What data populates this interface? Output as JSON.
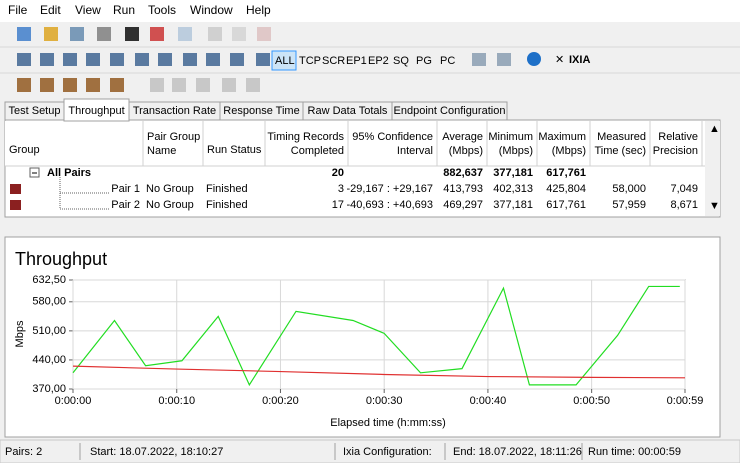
{
  "menu": [
    "File",
    "Edit",
    "View",
    "Run",
    "Tools",
    "Window",
    "Help"
  ],
  "toolbar_buttons": [
    "ALL",
    "TCP",
    "SCR",
    "EP1",
    "EP2",
    "SQ",
    "PG",
    "PC"
  ],
  "logo": "IXIA",
  "tabs": [
    "Test Setup",
    "Throughput",
    "Transaction Rate",
    "Response Time",
    "Raw Data Totals",
    "Endpoint Configuration"
  ],
  "active_tab": 1,
  "table": {
    "columns": [
      [
        "Group"
      ],
      [
        "Pair Group",
        "Name"
      ],
      [
        "Run Status"
      ],
      [
        "Timing Records",
        "Completed"
      ],
      [
        "95% Confidence",
        "Interval"
      ],
      [
        "Average",
        "(Mbps)"
      ],
      [
        "Minimum",
        "(Mbps)"
      ],
      [
        "Maximum",
        "(Mbps)"
      ],
      [
        "Measured",
        "Time (sec)"
      ],
      [
        "Relative",
        "Precision"
      ]
    ],
    "rows": [
      {
        "group": "All Pairs",
        "records": 20,
        "average": "882,637",
        "minimum": "377,181",
        "maximum": "617,761"
      },
      {
        "group": "Pair 1",
        "pair_group_name": "No Group",
        "run_status": "Finished",
        "records": 3,
        "interval": "-29,167 : +29,167",
        "average": "413,793",
        "minimum": "402,313",
        "maximum": "425,804",
        "measured_time": "58,000",
        "precision": "7,049"
      },
      {
        "group": "Pair 2",
        "pair_group_name": "No Group",
        "run_status": "Finished",
        "records": 17,
        "interval": "-40,693 : +40,693",
        "average": "469,297",
        "minimum": "377,181",
        "maximum": "617,761",
        "measured_time": "57,959",
        "precision": "8,671"
      }
    ]
  },
  "chart_data": {
    "type": "line",
    "title": "Throughput",
    "x_label": "Elapsed time (h:mm:ss)",
    "y_label": "Mbps",
    "xlim": [
      0,
      59
    ],
    "xticks": [
      {
        "value": 0,
        "label": "0:00:00"
      },
      {
        "value": 10,
        "label": "0:00:10"
      },
      {
        "value": 20,
        "label": "0:00:20"
      },
      {
        "value": 30,
        "label": "0:00:30"
      },
      {
        "value": 40,
        "label": "0:00:40"
      },
      {
        "value": 50,
        "label": "0:00:50"
      },
      {
        "value": 59,
        "label": "0:00:59"
      }
    ],
    "ylim": [
      370,
      632.5
    ],
    "yticks": [
      {
        "value": 370,
        "label": "370,00"
      },
      {
        "value": 440,
        "label": "440,00"
      },
      {
        "value": 510,
        "label": "510,00"
      },
      {
        "value": 580,
        "label": "580,00"
      },
      {
        "value": 632.5,
        "label": "632,50"
      }
    ],
    "grid": true,
    "series": [
      {
        "color": "#22dd22",
        "x": [
          0,
          4,
          7,
          10.5,
          14,
          17,
          21.5,
          27,
          30,
          33.5,
          37.5,
          41.5,
          44,
          48.5,
          52.5,
          55.5,
          58.5
        ],
        "values": [
          409,
          535,
          426,
          438,
          545,
          380,
          557,
          535,
          504,
          409,
          419,
          613,
          380,
          380,
          499,
          617,
          617
        ]
      },
      {
        "color": "#e03030",
        "x": [
          0,
          10,
          20,
          30,
          40,
          50,
          59
        ],
        "values": [
          425,
          418,
          412,
          405,
          400,
          398,
          397
        ]
      }
    ]
  },
  "status": [
    "Pairs: 2",
    "Start: 18.07.2022, 18:10:27",
    "Ixia Configuration:",
    "End: 18.07.2022, 18:11:26",
    "Run time: 00:00:59"
  ]
}
